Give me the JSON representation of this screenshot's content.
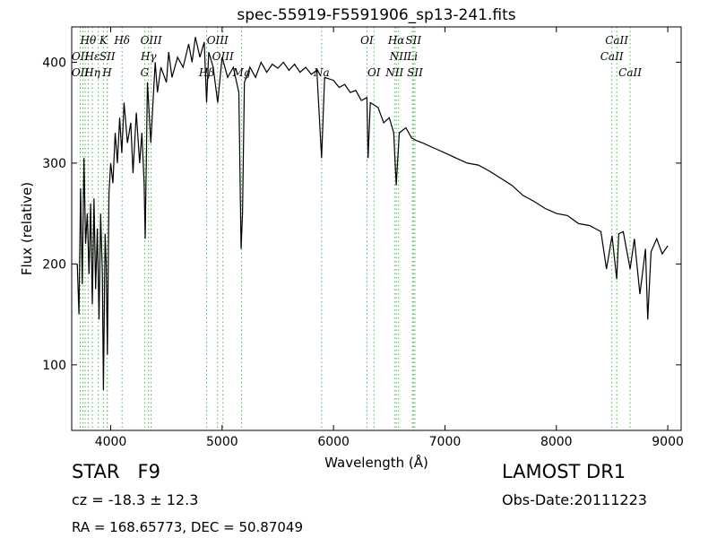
{
  "chart_data": {
    "type": "line",
    "title": "spec-55919-F5591906_sp13-241.fits",
    "xlabel": "Wavelength (Å)",
    "ylabel": "Flux (relative)",
    "xlim": [
      3650,
      9120
    ],
    "ylim": [
      35,
      435
    ],
    "x_ticks": [
      4000,
      5000,
      6000,
      7000,
      8000,
      9000
    ],
    "y_ticks": [
      100,
      200,
      300,
      400
    ],
    "grid": false,
    "series": [
      {
        "color": "#000000",
        "points": [
          [
            3700,
            200
          ],
          [
            3715,
            150
          ],
          [
            3730,
            275
          ],
          [
            3745,
            180
          ],
          [
            3760,
            305
          ],
          [
            3775,
            220
          ],
          [
            3790,
            250
          ],
          [
            3805,
            190
          ],
          [
            3820,
            260
          ],
          [
            3835,
            160
          ],
          [
            3850,
            265
          ],
          [
            3865,
            175
          ],
          [
            3880,
            235
          ],
          [
            3895,
            145
          ],
          [
            3910,
            250
          ],
          [
            3925,
            190
          ],
          [
            3935,
            75
          ],
          [
            3950,
            230
          ],
          [
            3960,
            200
          ],
          [
            3970,
            110
          ],
          [
            3985,
            270
          ],
          [
            4000,
            300
          ],
          [
            4020,
            280
          ],
          [
            4040,
            330
          ],
          [
            4060,
            300
          ],
          [
            4080,
            345
          ],
          [
            4100,
            310
          ],
          [
            4120,
            360
          ],
          [
            4150,
            320
          ],
          [
            4180,
            340
          ],
          [
            4200,
            290
          ],
          [
            4230,
            350
          ],
          [
            4260,
            300
          ],
          [
            4280,
            330
          ],
          [
            4300,
            280
          ],
          [
            4310,
            225
          ],
          [
            4330,
            380
          ],
          [
            4360,
            320
          ],
          [
            4380,
            360
          ],
          [
            4400,
            400
          ],
          [
            4420,
            370
          ],
          [
            4450,
            395
          ],
          [
            4500,
            380
          ],
          [
            4520,
            410
          ],
          [
            4550,
            385
          ],
          [
            4600,
            405
          ],
          [
            4650,
            395
          ],
          [
            4700,
            418
          ],
          [
            4730,
            400
          ],
          [
            4760,
            425
          ],
          [
            4800,
            405
          ],
          [
            4840,
            420
          ],
          [
            4861,
            360
          ],
          [
            4880,
            410
          ],
          [
            4920,
            395
          ],
          [
            4960,
            360
          ],
          [
            5000,
            405
          ],
          [
            5050,
            385
          ],
          [
            5100,
            395
          ],
          [
            5150,
            370
          ],
          [
            5170,
            215
          ],
          [
            5183,
            250
          ],
          [
            5200,
            380
          ],
          [
            5250,
            395
          ],
          [
            5300,
            385
          ],
          [
            5350,
            400
          ],
          [
            5400,
            390
          ],
          [
            5450,
            398
          ],
          [
            5500,
            394
          ],
          [
            5550,
            400
          ],
          [
            5600,
            392
          ],
          [
            5650,
            398
          ],
          [
            5700,
            390
          ],
          [
            5750,
            395
          ],
          [
            5800,
            388
          ],
          [
            5850,
            392
          ],
          [
            5893,
            305
          ],
          [
            5920,
            385
          ],
          [
            6000,
            382
          ],
          [
            6050,
            375
          ],
          [
            6100,
            378
          ],
          [
            6150,
            370
          ],
          [
            6200,
            372
          ],
          [
            6250,
            362
          ],
          [
            6300,
            365
          ],
          [
            6310,
            305
          ],
          [
            6330,
            360
          ],
          [
            6400,
            355
          ],
          [
            6450,
            340
          ],
          [
            6500,
            345
          ],
          [
            6540,
            330
          ],
          [
            6563,
            278
          ],
          [
            6590,
            330
          ],
          [
            6650,
            335
          ],
          [
            6700,
            325
          ],
          [
            6750,
            322
          ],
          [
            6800,
            320
          ],
          [
            6900,
            315
          ],
          [
            7000,
            310
          ],
          [
            7100,
            305
          ],
          [
            7200,
            300
          ],
          [
            7300,
            298
          ],
          [
            7400,
            292
          ],
          [
            7500,
            285
          ],
          [
            7600,
            278
          ],
          [
            7700,
            268
          ],
          [
            7800,
            262
          ],
          [
            7900,
            255
          ],
          [
            8000,
            250
          ],
          [
            8100,
            248
          ],
          [
            8200,
            240
          ],
          [
            8300,
            238
          ],
          [
            8400,
            232
          ],
          [
            8450,
            195
          ],
          [
            8500,
            228
          ],
          [
            8542,
            185
          ],
          [
            8560,
            230
          ],
          [
            8600,
            232
          ],
          [
            8662,
            195
          ],
          [
            8700,
            225
          ],
          [
            8750,
            170
          ],
          [
            8800,
            215
          ],
          [
            8820,
            145
          ],
          [
            8850,
            212
          ],
          [
            8900,
            225
          ],
          [
            8950,
            210
          ],
          [
            9000,
            218
          ]
        ]
      }
    ],
    "annotations": [
      {
        "label": "Hθ",
        "x": 3798,
        "row": 1
      },
      {
        "label": "K",
        "x": 3934,
        "row": 1
      },
      {
        "label": "Hδ",
        "x": 4102,
        "row": 1
      },
      {
        "label": "OIII",
        "x": 4363,
        "row": 1
      },
      {
        "label": "OIII",
        "x": 4959,
        "row": 1
      },
      {
        "label": "OI",
        "x": 6300,
        "row": 1
      },
      {
        "label": "Hα",
        "x": 6563,
        "row": 1
      },
      {
        "label": "SII",
        "x": 6717,
        "row": 1
      },
      {
        "label": "CaII",
        "x": 8542,
        "row": 1
      },
      {
        "label": "OII",
        "x": 3727,
        "row": 2
      },
      {
        "label": "Hε",
        "x": 3835,
        "row": 2
      },
      {
        "label": "SII",
        "x": 3970,
        "row": 2
      },
      {
        "label": "Hγ",
        "x": 4340,
        "row": 2
      },
      {
        "label": "OIII",
        "x": 5007,
        "row": 2
      },
      {
        "label": "NII",
        "x": 6584,
        "row": 2
      },
      {
        "label": "Li",
        "x": 6708,
        "row": 2
      },
      {
        "label": "CaII",
        "x": 8498,
        "row": 2
      },
      {
        "label": "OII",
        "x": 3727,
        "row": 3
      },
      {
        "label": "Hη",
        "x": 3835,
        "row": 3
      },
      {
        "label": "H",
        "x": 3968,
        "row": 3
      },
      {
        "label": "G",
        "x": 4305,
        "row": 3
      },
      {
        "label": "Hβ",
        "x": 4861,
        "row": 3
      },
      {
        "label": "Mg",
        "x": 5175,
        "row": 3
      },
      {
        "label": "Na",
        "x": 5893,
        "row": 3
      },
      {
        "label": "OI",
        "x": 6363,
        "row": 3
      },
      {
        "label": "NII",
        "x": 6548,
        "row": 3
      },
      {
        "label": "SII",
        "x": 6731,
        "row": 3
      },
      {
        "label": "CaII",
        "x": 8662,
        "row": 3
      }
    ],
    "line_markers_x": [
      3727,
      3750,
      3771,
      3798,
      3835,
      3889,
      3934,
      3968,
      3970,
      4102,
      4305,
      4340,
      4363,
      4861,
      4959,
      5007,
      5175,
      5893,
      6300,
      6363,
      6548,
      6563,
      6584,
      6708,
      6717,
      6731,
      8498,
      8542,
      8662
    ],
    "line_marker_color": "#44bb44"
  },
  "footer": {
    "object": "STAR",
    "subclass": "F9",
    "survey": "LAMOST DR1",
    "cz": "cz = -18.3 ± 12.3",
    "obs_date": "Obs-Date:20111223",
    "coords": "RA = 168.65773, DEC = 50.87049"
  }
}
